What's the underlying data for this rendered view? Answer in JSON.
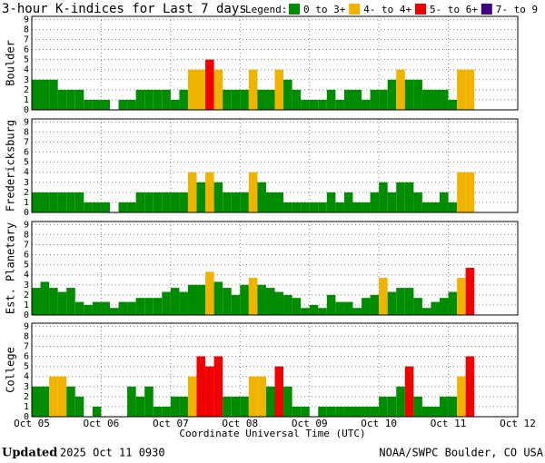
{
  "title": "3-hour K-indices for Last 7 days",
  "legend": {
    "label": "Legend:",
    "items": [
      {
        "label": "0 to 3+",
        "color": "#008c00"
      },
      {
        "label": "4- to 4+",
        "color": "#f0b400"
      },
      {
        "label": "5- to 6+",
        "color": "#f00000"
      },
      {
        "label": "7- to 9",
        "color": "#400080"
      }
    ]
  },
  "xlabel": "Coordinate Universal Time (UTC)",
  "footer": {
    "updated": "Updated",
    "time": "2025 Oct 11 0930",
    "source": "NOAA/SWPC Boulder, CO USA"
  },
  "chart_data": [
    {
      "type": "bar",
      "ylabel": "Boulder",
      "ylim": [
        0,
        9.3
      ],
      "yticks": [
        0,
        1,
        2,
        3,
        4,
        5,
        6,
        7,
        8,
        9
      ],
      "grid": true,
      "values": [
        3,
        3,
        3,
        2,
        2,
        2,
        1,
        1,
        1,
        0,
        1,
        1,
        2,
        2,
        2,
        2,
        1,
        2,
        4,
        4,
        5,
        4,
        2,
        2,
        2,
        4,
        2,
        2,
        4,
        3,
        2,
        1,
        1,
        1,
        2,
        1,
        2,
        2,
        1,
        2,
        2,
        3,
        4,
        3,
        3,
        2,
        2,
        2,
        1,
        4,
        4
      ]
    },
    {
      "type": "bar",
      "ylabel": "Fredericksburg",
      "ylim": [
        0,
        9.3
      ],
      "yticks": [
        0,
        1,
        2,
        3,
        4,
        5,
        6,
        7,
        8,
        9
      ],
      "grid": true,
      "values": [
        2,
        2,
        2,
        2,
        2,
        2,
        1,
        1,
        1,
        0,
        1,
        1,
        2,
        2,
        2,
        2,
        2,
        2,
        4,
        3,
        4,
        3,
        2,
        2,
        2,
        4,
        3,
        2,
        2,
        1,
        1,
        1,
        1,
        1,
        2,
        1,
        2,
        1,
        1,
        2,
        3,
        2,
        3,
        3,
        2,
        1,
        1,
        2,
        1,
        4,
        4
      ]
    },
    {
      "type": "bar",
      "ylabel": "Est. Planetary",
      "ylim": [
        0,
        9.3
      ],
      "yticks": [
        0,
        1,
        2,
        3,
        4,
        5,
        6,
        7,
        8,
        9
      ],
      "grid": true,
      "values": [
        2.7,
        3.3,
        2.7,
        2.3,
        2.7,
        1.3,
        1,
        1.3,
        1.3,
        0.7,
        1.3,
        1.3,
        1.7,
        1.7,
        1.7,
        2.3,
        2.7,
        2.3,
        3,
        3,
        4.3,
        3.3,
        2.7,
        2,
        3,
        3.7,
        3,
        2.7,
        2.3,
        2,
        1.7,
        0.7,
        1,
        0.7,
        2,
        1.3,
        1.3,
        0.7,
        1.7,
        2,
        3.7,
        2.3,
        2.7,
        2.7,
        1.7,
        0.7,
        1.3,
        1.7,
        2.3,
        3.7,
        4.7
      ]
    },
    {
      "type": "bar",
      "ylabel": "College",
      "ylim": [
        0,
        9.3
      ],
      "yticks": [
        0,
        1,
        2,
        3,
        4,
        5,
        6,
        7,
        8,
        9
      ],
      "grid": true,
      "values": [
        3,
        3,
        4,
        4,
        3,
        2,
        0,
        1,
        0,
        0,
        0,
        3,
        2,
        3,
        1,
        1,
        2,
        2,
        4,
        6,
        5,
        6,
        2,
        2,
        2,
        4,
        4,
        3,
        5,
        3,
        1,
        1,
        0,
        1,
        1,
        1,
        1,
        1,
        1,
        1,
        2,
        2,
        3,
        5,
        2,
        1,
        1,
        2,
        2,
        4,
        6
      ],
      "xlim": [
        0,
        7
      ],
      "xticks": [
        {
          "value": 0,
          "label": "Oct 05"
        },
        {
          "value": 1,
          "label": "Oct 06"
        },
        {
          "value": 2,
          "label": "Oct 07"
        },
        {
          "value": 3,
          "label": "Oct 08"
        },
        {
          "value": 4,
          "label": "Oct 09"
        },
        {
          "value": 5,
          "label": "Oct 10"
        },
        {
          "value": 6,
          "label": "Oct 11"
        },
        {
          "value": 7,
          "label": "Oct 12"
        }
      ]
    }
  ]
}
